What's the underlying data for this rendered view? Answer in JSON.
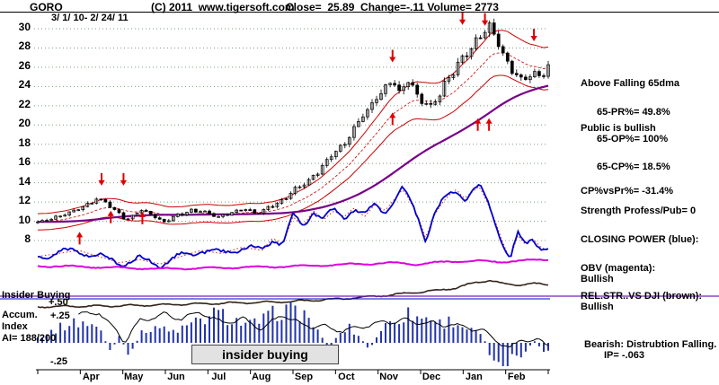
{
  "header": {
    "symbol": "GORO",
    "copyright": "(C) 2011  www.tigersoft.com",
    "quote": "Close=  25.89  Change=-.11 Volume= 2773",
    "date_range": "3/ 1/ 10- 2/ 24/ 11"
  },
  "right_panel": {
    "lines": [
      "Above Falling 65dma",
      "65-PR%= 49.8%",
      "Public is bullish",
      "65-OP%= 100%",
      "65-CP%= 18.5%",
      "CP%vsPr%= -31.4%",
      "Strength Profess/Pub= 0",
      "CLOSING POWER (blue):",
      "OBV (magenta):",
      "Bullish",
      "REL.STR..VS DJI (brown):",
      "Bullish",
      "Bearish: Distrubtion Falling.",
      "IP= -.063"
    ]
  },
  "lower_left": {
    "insider_buying": "Insider Buying",
    "plus50": "+.50",
    "accum": "Accum.",
    "plus25": "+.25",
    "index": "Index",
    "ai": "AI= 188/200",
    "minus25": "-.25"
  },
  "annotation_box": {
    "label": "insider buying"
  },
  "chart_data": {
    "type": "candlestick",
    "title": "GORO daily price with 65dma bands, Closing Power, OBV, Rel.Str. and Insider Buying Accumulation Index",
    "date_range": "3/1/10 - 2/24/11",
    "close": 25.89,
    "change": -0.11,
    "volume": 2773,
    "ylim": [
      7,
      32
    ],
    "y_axis_labels": [
      30,
      28,
      26,
      24,
      22,
      20,
      18,
      16,
      14,
      12,
      10,
      8
    ],
    "x_axis_months": [
      "Apr",
      "May",
      "Jun",
      "Jul",
      "Aug",
      "Sep",
      "Oct",
      "Nov",
      "Dec",
      "Jan",
      "Feb"
    ],
    "price_anchors": [
      [
        0,
        9.9
      ],
      [
        0.03,
        10.3
      ],
      [
        0.06,
        10.8
      ],
      [
        0.09,
        11.5
      ],
      [
        0.115,
        12.3
      ],
      [
        0.13,
        12.1
      ],
      [
        0.15,
        11.2
      ],
      [
        0.175,
        10.1
      ],
      [
        0.2,
        11.2
      ],
      [
        0.22,
        10.8
      ],
      [
        0.245,
        9.9
      ],
      [
        0.27,
        10.6
      ],
      [
        0.3,
        11.1
      ],
      [
        0.33,
        11.0
      ],
      [
        0.35,
        10.4
      ],
      [
        0.38,
        10.9
      ],
      [
        0.405,
        11.3
      ],
      [
        0.43,
        10.8
      ],
      [
        0.455,
        11.6
      ],
      [
        0.48,
        12.1
      ],
      [
        0.5,
        13.3
      ],
      [
        0.525,
        13.9
      ],
      [
        0.55,
        15.2
      ],
      [
        0.575,
        16.8
      ],
      [
        0.6,
        18.0
      ],
      [
        0.62,
        19.6
      ],
      [
        0.64,
        21.2
      ],
      [
        0.66,
        22.6
      ],
      [
        0.68,
        23.8
      ],
      [
        0.695,
        24.6
      ],
      [
        0.71,
        23.2
      ],
      [
        0.725,
        24.6
      ],
      [
        0.74,
        23.4
      ],
      [
        0.755,
        22.4
      ],
      [
        0.77,
        21.8
      ],
      [
        0.785,
        23.0
      ],
      [
        0.8,
        24.6
      ],
      [
        0.815,
        25.6
      ],
      [
        0.83,
        26.8
      ],
      [
        0.845,
        27.6
      ],
      [
        0.86,
        28.8
      ],
      [
        0.875,
        29.8
      ],
      [
        0.89,
        30.3
      ],
      [
        0.9,
        28.6
      ],
      [
        0.915,
        27.0
      ],
      [
        0.93,
        25.6
      ],
      [
        0.945,
        24.8
      ],
      [
        0.96,
        24.9
      ],
      [
        0.975,
        25.4
      ],
      [
        0.99,
        25.3
      ],
      [
        1,
        25.89
      ]
    ],
    "closing_power_anchors": [
      [
        0,
        26
      ],
      [
        0.04,
        28
      ],
      [
        0.08,
        30
      ],
      [
        0.12,
        26
      ],
      [
        0.16,
        22
      ],
      [
        0.2,
        24
      ],
      [
        0.24,
        21
      ],
      [
        0.28,
        26
      ],
      [
        0.32,
        30
      ],
      [
        0.36,
        28
      ],
      [
        0.4,
        32
      ],
      [
        0.44,
        30
      ],
      [
        0.46,
        38
      ],
      [
        0.48,
        34
      ],
      [
        0.5,
        52
      ],
      [
        0.52,
        46
      ],
      [
        0.54,
        56
      ],
      [
        0.56,
        50
      ],
      [
        0.58,
        56
      ],
      [
        0.6,
        52
      ],
      [
        0.62,
        58
      ],
      [
        0.64,
        52
      ],
      [
        0.66,
        60
      ],
      [
        0.68,
        56
      ],
      [
        0.7,
        64
      ],
      [
        0.715,
        70
      ],
      [
        0.73,
        62
      ],
      [
        0.745,
        52
      ],
      [
        0.76,
        38
      ],
      [
        0.775,
        52
      ],
      [
        0.79,
        60
      ],
      [
        0.805,
        66
      ],
      [
        0.82,
        70
      ],
      [
        0.835,
        64
      ],
      [
        0.85,
        68
      ],
      [
        0.865,
        72
      ],
      [
        0.88,
        62
      ],
      [
        0.895,
        50
      ],
      [
        0.91,
        36
      ],
      [
        0.925,
        24
      ],
      [
        0.94,
        40
      ],
      [
        0.955,
        34
      ],
      [
        0.97,
        38
      ],
      [
        0.985,
        32
      ],
      [
        1,
        30
      ]
    ],
    "obv_anchors": [
      [
        0,
        23
      ],
      [
        0.08,
        20
      ],
      [
        0.16,
        14
      ],
      [
        0.24,
        10
      ],
      [
        0.32,
        12
      ],
      [
        0.4,
        16
      ],
      [
        0.48,
        20
      ],
      [
        0.56,
        26
      ],
      [
        0.64,
        32
      ],
      [
        0.7,
        36
      ],
      [
        0.74,
        30
      ],
      [
        0.78,
        38
      ],
      [
        0.82,
        42
      ],
      [
        0.86,
        46
      ],
      [
        0.9,
        40
      ],
      [
        0.94,
        46
      ],
      [
        1,
        50
      ]
    ],
    "rel_str_anchors": [
      [
        0,
        16
      ],
      [
        0.1,
        18
      ],
      [
        0.2,
        20
      ],
      [
        0.3,
        24
      ],
      [
        0.4,
        28
      ],
      [
        0.5,
        32
      ],
      [
        0.55,
        36
      ],
      [
        0.6,
        40
      ],
      [
        0.65,
        46
      ],
      [
        0.7,
        52
      ],
      [
        0.74,
        58
      ],
      [
        0.78,
        64
      ],
      [
        0.82,
        72
      ],
      [
        0.86,
        88
      ],
      [
        0.885,
        94
      ],
      [
        0.91,
        84
      ],
      [
        0.94,
        80
      ],
      [
        0.97,
        84
      ],
      [
        1,
        82
      ]
    ],
    "hist_anchors": [
      [
        0,
        0.15
      ],
      [
        0.03,
        0.35
      ],
      [
        0.06,
        0.55
      ],
      [
        0.09,
        0.6
      ],
      [
        0.12,
        0.45
      ],
      [
        0.14,
        -0.25
      ],
      [
        0.16,
        0.2
      ],
      [
        0.18,
        -0.45
      ],
      [
        0.2,
        0.25
      ],
      [
        0.23,
        0.5
      ],
      [
        0.26,
        0.3
      ],
      [
        0.29,
        0.45
      ],
      [
        0.32,
        0.65
      ],
      [
        0.35,
        0.85
      ],
      [
        0.38,
        0.7
      ],
      [
        0.41,
        0.5
      ],
      [
        0.44,
        0.65
      ],
      [
        0.47,
        0.9
      ],
      [
        0.5,
        1.0
      ],
      [
        0.53,
        0.75
      ],
      [
        0.55,
        0.3
      ],
      [
        0.57,
        -0.2
      ],
      [
        0.59,
        0.25
      ],
      [
        0.61,
        0.45
      ],
      [
        0.63,
        0.15
      ],
      [
        0.65,
        -0.2
      ],
      [
        0.67,
        0.35
      ],
      [
        0.69,
        0.6
      ],
      [
        0.71,
        0.75
      ],
      [
        0.73,
        0.85
      ],
      [
        0.75,
        0.7
      ],
      [
        0.77,
        0.75
      ],
      [
        0.79,
        0.55
      ],
      [
        0.81,
        0.65
      ],
      [
        0.83,
        0.5
      ],
      [
        0.85,
        0.35
      ],
      [
        0.87,
        0.25
      ],
      [
        0.89,
        -0.45
      ],
      [
        0.91,
        -0.85
      ],
      [
        0.93,
        -0.35
      ],
      [
        0.95,
        -0.55
      ],
      [
        0.97,
        0.1
      ],
      [
        0.99,
        -0.25
      ],
      [
        1,
        -0.3
      ]
    ],
    "ai_line_anchors": [
      [
        0.08,
        0.7
      ],
      [
        0.12,
        0.78
      ],
      [
        0.15,
        0.35
      ],
      [
        0.17,
        0.05
      ],
      [
        0.2,
        0.55
      ],
      [
        0.24,
        0.72
      ],
      [
        0.28,
        0.62
      ],
      [
        0.32,
        0.78
      ],
      [
        0.36,
        0.5
      ],
      [
        0.4,
        0.6
      ],
      [
        0.44,
        0.35
      ],
      [
        0.48,
        0.72
      ],
      [
        0.52,
        0.45
      ],
      [
        0.56,
        0.4
      ],
      [
        0.6,
        0.3
      ],
      [
        0.64,
        0.42
      ],
      [
        0.68,
        0.52
      ],
      [
        0.72,
        0.56
      ],
      [
        0.76,
        0.5
      ],
      [
        0.8,
        0.46
      ],
      [
        0.84,
        0.4
      ],
      [
        0.875,
        0.3
      ],
      [
        0.9,
        0.05
      ],
      [
        0.925,
        -0.15
      ],
      [
        0.95,
        0.12
      ],
      [
        0.975,
        0.05
      ],
      [
        1,
        -0.05
      ]
    ],
    "arrows": [
      {
        "t": 0.082,
        "price": 8.9,
        "dir": "up"
      },
      {
        "t": 0.125,
        "price": 13.7,
        "dir": "down"
      },
      {
        "t": 0.168,
        "price": 13.7,
        "dir": "down"
      },
      {
        "t": 0.143,
        "price": 11.1,
        "dir": "up"
      },
      {
        "t": 0.205,
        "price": 11.0,
        "dir": "up"
      },
      {
        "t": 0.695,
        "price": 26.5,
        "dir": "down"
      },
      {
        "t": 0.695,
        "price": 21.3,
        "dir": "up"
      },
      {
        "t": 0.832,
        "price": 30.4,
        "dir": "down"
      },
      {
        "t": 0.876,
        "price": 30.3,
        "dir": "down"
      },
      {
        "t": 0.862,
        "price": 20.7,
        "dir": "up"
      },
      {
        "t": 0.884,
        "price": 20.7,
        "dir": "up"
      },
      {
        "t": 0.972,
        "price": 28.7,
        "dir": "down"
      }
    ],
    "colors": {
      "band": "#cc0000",
      "ma65": "#770088",
      "closing_power": "#0000cc",
      "obv": "#dd00dd",
      "rel_str": "#33221a",
      "histogram": "#2233aa",
      "arrow": "#dd0000",
      "grid": "#7d9e7d",
      "separator_purple": "#7722bb",
      "separator_blue": "#0000cc"
    }
  }
}
